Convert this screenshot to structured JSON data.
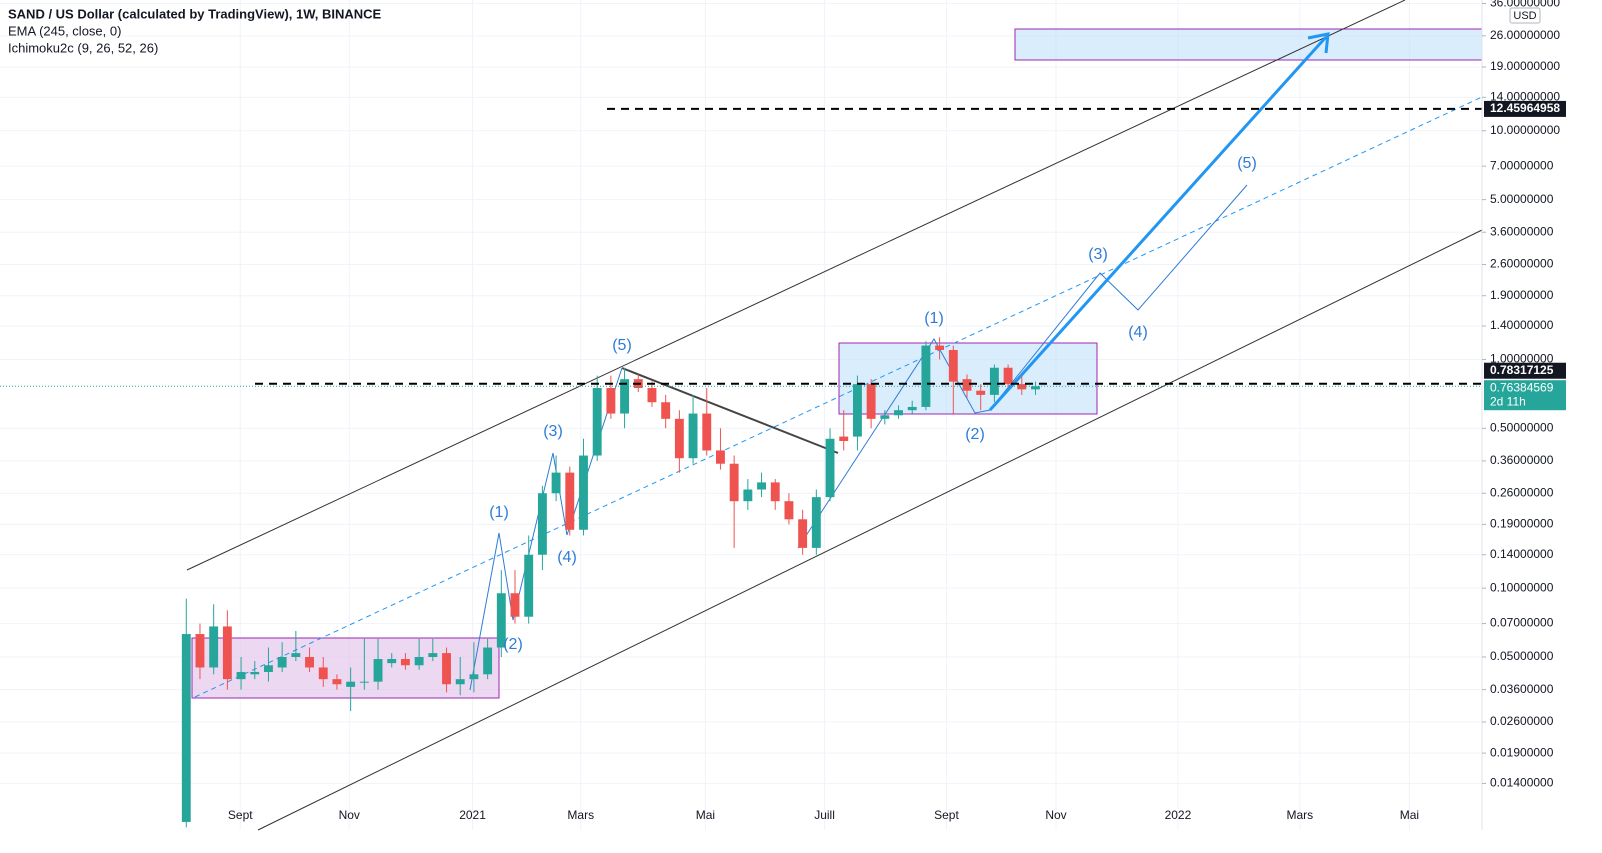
{
  "chart_data": {
    "type": "candlestick",
    "title": "SAND / US Dollar (calculated by TradingView), 1W, BINANCE",
    "indicators": [
      "EMA (245, close, 0)",
      "Ichimoku2c (9, 26, 52, 26)"
    ],
    "currency": "USD",
    "countdown": "2d 11h",
    "log_y": true,
    "colors": {
      "up": "#26a69a",
      "down": "#ef5350"
    },
    "open": [
      0.0095,
      0.063,
      0.045,
      0.068,
      0.04,
      0.042,
      0.043,
      0.045,
      0.05,
      0.05,
      0.045,
      0.04,
      0.037,
      0.039,
      0.039,
      0.047,
      0.049,
      0.046,
      0.05,
      0.052,
      0.038,
      0.04,
      0.042,
      0.055,
      0.095,
      0.075,
      0.14,
      0.26,
      0.32,
      0.18,
      0.38,
      0.75,
      0.58,
      0.82,
      0.75,
      0.65,
      0.55,
      0.37,
      0.58,
      0.4,
      0.35,
      0.24,
      0.27,
      0.29,
      0.24,
      0.2,
      0.15,
      0.25,
      0.46,
      0.46,
      0.78,
      0.55,
      0.57,
      0.6,
      0.62,
      1.15,
      1.1,
      0.82,
      0.73,
      0.7,
      0.92,
      0.78,
      0.74
    ],
    "high": [
      0.09,
      0.07,
      0.085,
      0.08,
      0.05,
      0.048,
      0.055,
      0.058,
      0.065,
      0.055,
      0.05,
      0.042,
      0.045,
      0.06,
      0.06,
      0.052,
      0.052,
      0.06,
      0.06,
      0.055,
      0.05,
      0.058,
      0.06,
      0.12,
      0.12,
      0.17,
      0.28,
      0.38,
      0.34,
      0.45,
      0.85,
      0.85,
      0.92,
      0.86,
      0.8,
      0.7,
      0.6,
      0.7,
      0.75,
      0.5,
      0.38,
      0.3,
      0.32,
      0.3,
      0.26,
      0.22,
      0.27,
      0.5,
      0.6,
      0.85,
      0.82,
      0.6,
      0.63,
      0.66,
      1.2,
      1.25,
      1.15,
      0.86,
      0.78,
      0.95,
      0.95,
      0.85,
      0.8
    ],
    "low": [
      0.009,
      0.04,
      0.042,
      0.036,
      0.036,
      0.04,
      0.039,
      0.043,
      0.048,
      0.043,
      0.037,
      0.036,
      0.029,
      0.036,
      0.036,
      0.045,
      0.044,
      0.044,
      0.048,
      0.035,
      0.034,
      0.035,
      0.04,
      0.05,
      0.07,
      0.07,
      0.12,
      0.24,
      0.17,
      0.17,
      0.36,
      0.55,
      0.5,
      0.72,
      0.62,
      0.5,
      0.32,
      0.35,
      0.38,
      0.33,
      0.15,
      0.22,
      0.25,
      0.22,
      0.19,
      0.14,
      0.14,
      0.24,
      0.4,
      0.4,
      0.5,
      0.52,
      0.55,
      0.58,
      0.6,
      1.0,
      0.58,
      0.68,
      0.6,
      0.65,
      0.75,
      0.7,
      0.7
    ],
    "close": [
      0.063,
      0.045,
      0.068,
      0.04,
      0.043,
      0.043,
      0.046,
      0.05,
      0.052,
      0.045,
      0.04,
      0.038,
      0.039,
      0.039,
      0.049,
      0.049,
      0.046,
      0.05,
      0.052,
      0.038,
      0.04,
      0.042,
      0.055,
      0.095,
      0.075,
      0.14,
      0.26,
      0.32,
      0.18,
      0.38,
      0.75,
      0.58,
      0.82,
      0.75,
      0.65,
      0.55,
      0.37,
      0.58,
      0.4,
      0.35,
      0.24,
      0.27,
      0.29,
      0.24,
      0.2,
      0.15,
      0.25,
      0.45,
      0.44,
      0.78,
      0.55,
      0.57,
      0.6,
      0.62,
      1.15,
      1.1,
      0.8,
      0.73,
      0.7,
      0.92,
      0.78,
      0.74,
      0.76384569
    ],
    "xlim": [
      -13.6,
      94.6
    ],
    "xticks": [
      {
        "value": 3.94,
        "label": "Sept"
      },
      {
        "value": 11.9,
        "label": "Nov"
      },
      {
        "value": 20.9,
        "label": "2021"
      },
      {
        "value": 28.8,
        "label": "Mars"
      },
      {
        "value": 37.9,
        "label": "Mai"
      },
      {
        "value": 46.6,
        "label": "Juill"
      },
      {
        "value": 55.5,
        "label": "Sept"
      },
      {
        "value": 63.5,
        "label": "Nov"
      },
      {
        "value": 72.4,
        "label": "2022"
      },
      {
        "value": 81.3,
        "label": "Mars"
      },
      {
        "value": 89.3,
        "label": "Mai"
      }
    ],
    "ylim": [
      0.00876,
      37.3
    ],
    "yticks": [
      {
        "value": 36,
        "label": "36.00000000"
      },
      {
        "value": 26,
        "label": "26.00000000"
      },
      {
        "value": 19,
        "label": "19.00000000"
      },
      {
        "value": 14,
        "label": "14.00000000"
      },
      {
        "value": 10,
        "label": "10.00000000"
      },
      {
        "value": 7,
        "label": "7.00000000"
      },
      {
        "value": 5,
        "label": "5.00000000"
      },
      {
        "value": 3.6,
        "label": "3.60000000"
      },
      {
        "value": 2.6,
        "label": "2.60000000"
      },
      {
        "value": 1.9,
        "label": "1.90000000"
      },
      {
        "value": 1.4,
        "label": "1.40000000"
      },
      {
        "value": 1,
        "label": "1.00000000"
      },
      {
        "value": 0.5,
        "label": "0.50000000"
      },
      {
        "value": 0.36,
        "label": "0.36000000"
      },
      {
        "value": 0.26,
        "label": "0.26000000"
      },
      {
        "value": 0.19,
        "label": "0.19000000"
      },
      {
        "value": 0.14,
        "label": "0.14000000"
      },
      {
        "value": 0.1,
        "label": "0.10000000"
      },
      {
        "value": 0.07,
        "label": "0.07000000"
      },
      {
        "value": 0.05,
        "label": "0.05000000"
      },
      {
        "value": 0.036,
        "label": "0.03600000"
      },
      {
        "value": 0.026,
        "label": "0.02600000"
      },
      {
        "value": 0.019,
        "label": "0.01900000"
      },
      {
        "value": 0.014,
        "label": "0.01400000"
      }
    ],
    "hlines": [
      12.45964958,
      0.78317125
    ],
    "grid": true,
    "annotations": [
      "(1)",
      "(2)",
      "(3)",
      "(4)",
      "(5)",
      "(1)",
      "(2)",
      "(3)",
      "(4)",
      "(5)"
    ]
  }
}
